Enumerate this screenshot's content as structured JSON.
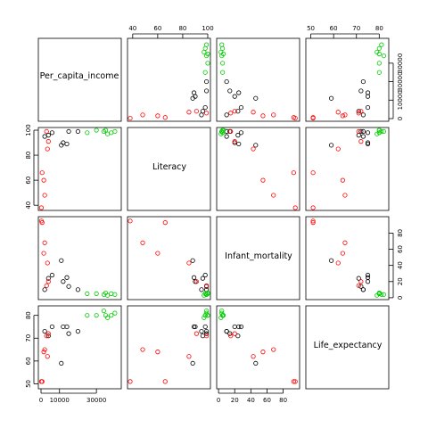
{
  "chart_data": {
    "type": "scatter",
    "subtype": "scatter-matrix",
    "variables": [
      "Per_capita_income",
      "Literacy",
      "Infant_mortality",
      "Life_expectancy"
    ],
    "axis_ranges": {
      "Per_capita_income": [
        0,
        42000
      ],
      "Literacy": [
        38,
        100
      ],
      "Infant_mortality": [
        1,
        97
      ],
      "Life_expectancy": [
        49,
        83
      ]
    },
    "tick_labels": {
      "Per_capita_income": [
        "0",
        "10000",
        "30000"
      ],
      "Literacy": [
        "40",
        "60",
        "80",
        "100"
      ],
      "Infant_mortality": [
        "0",
        "20",
        "40",
        "60",
        "80"
      ],
      "Life_expectancy": [
        "50",
        "60",
        "70",
        "80"
      ]
    },
    "tick_values": {
      "Per_capita_income": [
        0,
        10000,
        20000,
        30000
      ],
      "Literacy": [
        40,
        60,
        80,
        100
      ],
      "Infant_mortality": [
        0,
        20,
        40,
        60,
        80
      ],
      "Life_expectancy": [
        50,
        60,
        70,
        80
      ]
    },
    "top_axis_values": {
      "Literacy": [
        40,
        60,
        80,
        100
      ]
    },
    "right_axis_values": {
      "Per_capita_income": [
        0,
        10000,
        20000,
        30000
      ]
    },
    "left_axis_values": {
      "Literacy": [
        40,
        60,
        80,
        100
      ],
      "Life_expectancy": [
        50,
        60,
        70,
        80
      ]
    },
    "bottom_axis_values": {
      "Per_capita_income": [
        0,
        10000,
        30000
      ],
      "Infant_mortality": [
        0,
        20,
        40,
        60,
        80
      ]
    },
    "group_colors": {
      "black": "#000000",
      "red": "#ff0000",
      "green": "#00cd00"
    },
    "series": [
      {
        "color": "black",
        "points": [
          {
            "Per_capita_income": 2000,
            "Literacy": 95,
            "Infant_mortality": 10,
            "Life_expectancy": 73
          },
          {
            "Per_capita_income": 4000,
            "Literacy": 96,
            "Infant_mortality": 24,
            "Life_expectancy": 71
          },
          {
            "Per_capita_income": 6000,
            "Literacy": 98,
            "Infant_mortality": 28,
            "Life_expectancy": 75
          },
          {
            "Per_capita_income": 12000,
            "Literacy": 90,
            "Infant_mortality": 20,
            "Life_expectancy": 75
          },
          {
            "Per_capita_income": 11000,
            "Literacy": 88,
            "Infant_mortality": 46,
            "Life_expectancy": 59
          },
          {
            "Per_capita_income": 15000,
            "Literacy": 99,
            "Infant_mortality": 14,
            "Life_expectancy": 72
          },
          {
            "Per_capita_income": 14000,
            "Literacy": 89,
            "Infant_mortality": 25,
            "Life_expectancy": 75
          },
          {
            "Per_capita_income": 20000,
            "Literacy": 99,
            "Infant_mortality": 10,
            "Life_expectancy": 73
          }
        ]
      },
      {
        "color": "red",
        "points": [
          {
            "Per_capita_income": 200,
            "Literacy": 38,
            "Infant_mortality": 95,
            "Life_expectancy": 51
          },
          {
            "Per_capita_income": 600,
            "Literacy": 66,
            "Infant_mortality": 93,
            "Life_expectancy": 51
          },
          {
            "Per_capita_income": 1500,
            "Literacy": 60,
            "Infant_mortality": 55,
            "Life_expectancy": 64
          },
          {
            "Per_capita_income": 2000,
            "Literacy": 48,
            "Infant_mortality": 68,
            "Life_expectancy": 65
          },
          {
            "Per_capita_income": 3000,
            "Literacy": 99,
            "Infant_mortality": 15,
            "Life_expectancy": 71
          },
          {
            "Per_capita_income": 3500,
            "Literacy": 85,
            "Infant_mortality": 43,
            "Life_expectancy": 62
          },
          {
            "Per_capita_income": 4000,
            "Literacy": 91,
            "Infant_mortality": 20,
            "Life_expectancy": 72
          }
        ]
      },
      {
        "color": "green",
        "points": [
          {
            "Per_capita_income": 25000,
            "Literacy": 98,
            "Infant_mortality": 5,
            "Life_expectancy": 80
          },
          {
            "Per_capita_income": 34000,
            "Literacy": 99,
            "Infant_mortality": 4,
            "Life_expectancy": 82
          },
          {
            "Per_capita_income": 35000,
            "Literacy": 100,
            "Infant_mortality": 6,
            "Life_expectancy": 80
          },
          {
            "Per_capita_income": 36000,
            "Literacy": 97,
            "Infant_mortality": 3,
            "Life_expectancy": 79
          },
          {
            "Per_capita_income": 38000,
            "Literacy": 98,
            "Infant_mortality": 5,
            "Life_expectancy": 80
          },
          {
            "Per_capita_income": 40000,
            "Literacy": 99,
            "Infant_mortality": 4,
            "Life_expectancy": 81
          },
          {
            "Per_capita_income": 30000,
            "Literacy": 100,
            "Infant_mortality": 5,
            "Life_expectancy": 80
          }
        ]
      }
    ]
  }
}
